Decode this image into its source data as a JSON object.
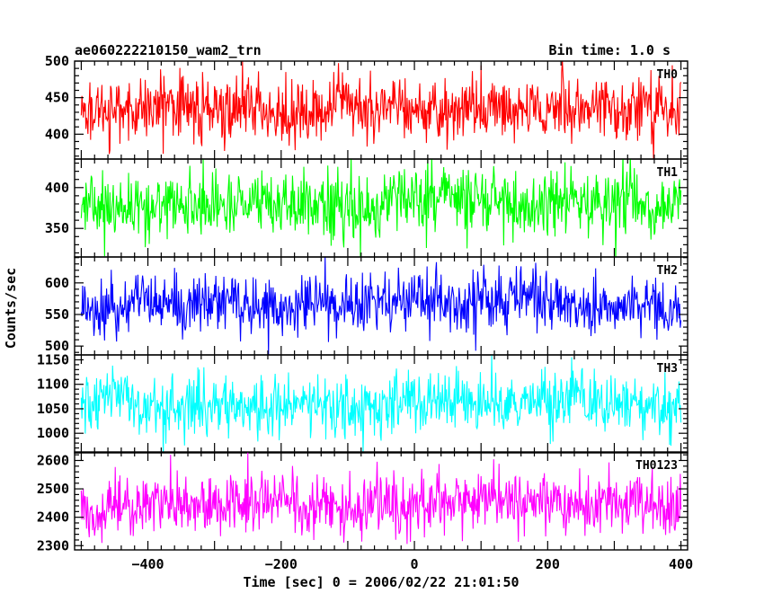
{
  "header": {
    "title": "ae060222210150_wam2_trn",
    "bin_time": "Bin time: 1.0 s"
  },
  "chart_data": {
    "type": "line",
    "xlabel": "Time [sec] 0 = 2006/02/22 21:01:50",
    "ylabel": "Counts/sec",
    "xlim": [
      -510,
      410
    ],
    "x_ticks": [
      -400,
      -200,
      0,
      200,
      400
    ],
    "x_start": -500,
    "x_end": 400,
    "bin_time_s": 1.0,
    "series": [
      {
        "name": "TH0",
        "color": "#ff0000",
        "ylim": [
          366,
          500
        ],
        "y_ticks": [
          400,
          450,
          500
        ],
        "mean": 435,
        "noise_sd": 22
      },
      {
        "name": "TH1",
        "color": "#00ff00",
        "ylim": [
          315,
          435
        ],
        "y_ticks": [
          350,
          400
        ],
        "mean": 378,
        "noise_sd": 20
      },
      {
        "name": "TH2",
        "color": "#0000ff",
        "ylim": [
          486,
          641
        ],
        "y_ticks": [
          500,
          550,
          600
        ],
        "mean": 565,
        "noise_sd": 24
      },
      {
        "name": "TH3",
        "color": "#00ffff",
        "ylim": [
          960,
          1160
        ],
        "y_ticks": [
          1000,
          1050,
          1100,
          1150
        ],
        "mean": 1055,
        "noise_sd": 32
      },
      {
        "name": "TH0123",
        "color": "#ff00ff",
        "ylim": [
          2285,
          2630
        ],
        "y_ticks": [
          2300,
          2400,
          2500,
          2600
        ],
        "mean": 2440,
        "noise_sd": 55
      }
    ]
  }
}
